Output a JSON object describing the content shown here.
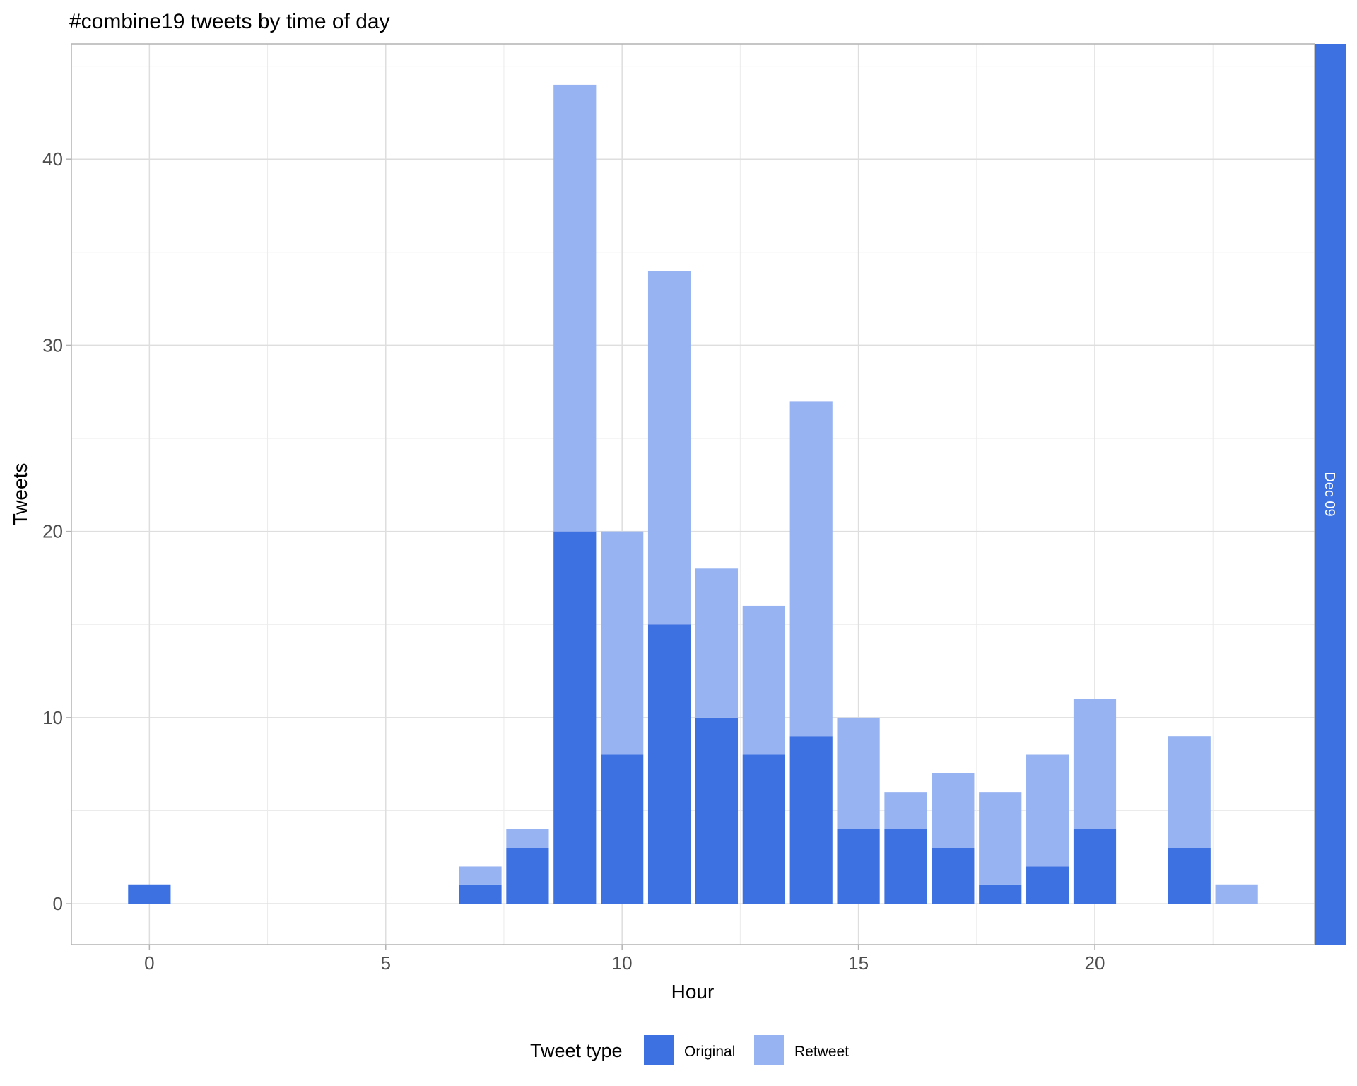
{
  "chart_data": {
    "type": "bar",
    "stacked": true,
    "title": "#combine19 tweets by time of day",
    "xlabel": "Hour",
    "ylabel": "Tweets",
    "xlim": [
      -1.65,
      24.65
    ],
    "ylim": [
      -2.2,
      46.2
    ],
    "x_ticks": [
      "0",
      "5",
      "10",
      "15",
      "20"
    ],
    "x_tick_values": [
      0,
      5,
      10,
      15,
      20
    ],
    "y_ticks": [
      "0",
      "10",
      "20",
      "30",
      "40"
    ],
    "y_tick_values": [
      0,
      10,
      20,
      30,
      40
    ],
    "grid": true,
    "facet_label": "Dec 09",
    "legend": {
      "title": "Tweet type",
      "position": "bottom",
      "items": [
        "Original",
        "Retweet"
      ]
    },
    "x": [
      0,
      7,
      8,
      9,
      10,
      11,
      12,
      13,
      14,
      15,
      16,
      17,
      18,
      19,
      20,
      22,
      23
    ],
    "series": [
      {
        "name": "Original",
        "color": "#3d71e2",
        "values": [
          1,
          1,
          3,
          20,
          8,
          15,
          10,
          8,
          9,
          4,
          4,
          3,
          1,
          2,
          4,
          3,
          0
        ]
      },
      {
        "name": "Retweet",
        "color": "#97b3f2",
        "values": [
          0,
          1,
          1,
          24,
          12,
          19,
          8,
          8,
          18,
          6,
          2,
          4,
          5,
          6,
          7,
          6,
          1
        ]
      }
    ]
  }
}
